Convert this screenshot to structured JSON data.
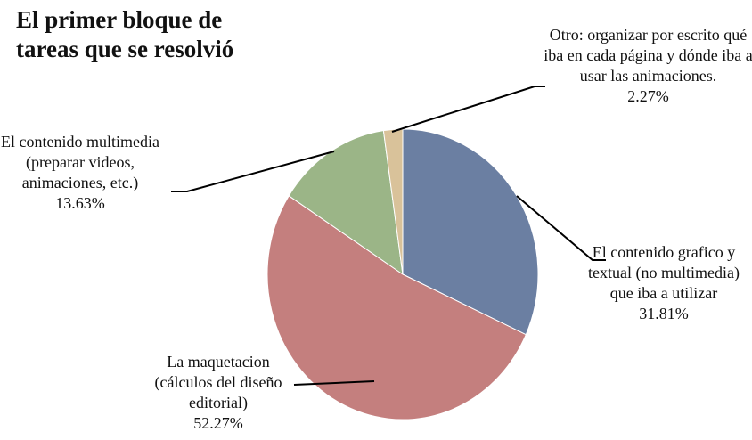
{
  "chart_data": {
    "type": "pie",
    "title": "El primer bloque de tareas que se resolvió",
    "categories": [
      "El contenido grafico y textual (no multimedia) que iba a utilizar",
      "La maquetacion (cálculos del diseño editorial)",
      "El contenido multimedia (preparar videos, animaciones, etc.)",
      "Otro: organizar por escrito qué iba en cada página y dónde iba a usar las animaciones."
    ],
    "values": [
      31.81,
      52.27,
      13.63,
      2.27
    ],
    "value_labels": [
      "31.81%",
      "52.27%",
      "13.63%",
      "2.27%"
    ],
    "colors": [
      "#6b7fa2",
      "#c47f7e",
      "#9bb587",
      "#d9c29a"
    ]
  }
}
